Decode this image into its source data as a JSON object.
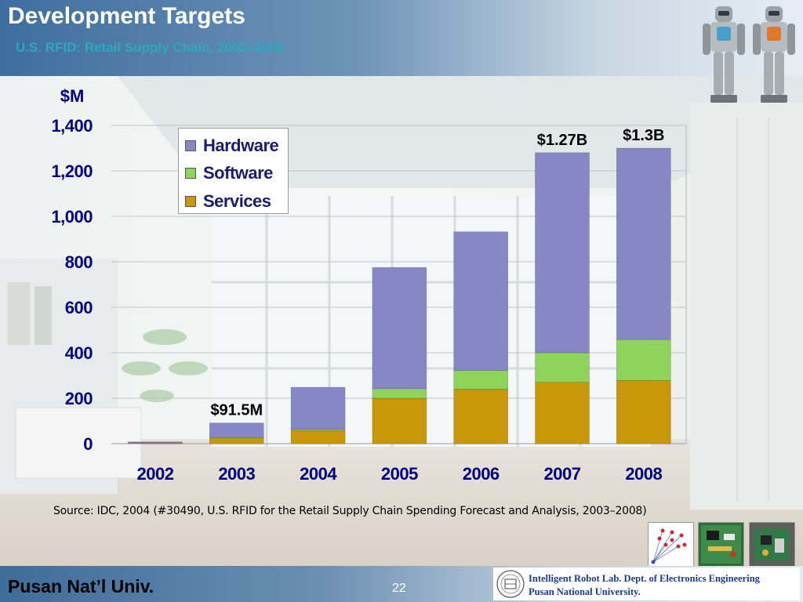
{
  "header": {
    "title": "Development Targets",
    "subtitle": "U.S. RFID: Retail Supply Chain, 2002–2008"
  },
  "chart_data": {
    "type": "bar",
    "stacked": true,
    "ylabel": "$M",
    "ylim": [
      0,
      1400
    ],
    "yticks": [
      0,
      200,
      400,
      600,
      800,
      1000,
      1200,
      1400
    ],
    "ytick_labels": [
      "0",
      "200",
      "400",
      "600",
      "800",
      "1,000",
      "1,200",
      "1,400"
    ],
    "grid": true,
    "legend_position": "top-left",
    "categories": [
      "2002",
      "2003",
      "2004",
      "2005",
      "2006",
      "2007",
      "2008"
    ],
    "series": [
      {
        "name": "Services",
        "color": "#c9970a",
        "values": [
          3,
          25,
          58,
          200,
          240,
          270,
          278
        ]
      },
      {
        "name": "Software",
        "color": "#8ed35c",
        "values": [
          1,
          3,
          5,
          42,
          82,
          130,
          180
        ]
      },
      {
        "name": "Hardware",
        "color": "#8787c6",
        "values": [
          4,
          63,
          185,
          533,
          610,
          880,
          842
        ]
      }
    ],
    "annotations": [
      {
        "category": "2003",
        "text": "$91.5M"
      },
      {
        "category": "2007",
        "text": "$1.27B"
      },
      {
        "category": "2008",
        "text": "$1.3B"
      }
    ]
  },
  "legend": {
    "items": [
      {
        "label": "Hardware",
        "color": "#8787c6"
      },
      {
        "label": "Software",
        "color": "#8ed35c"
      },
      {
        "label": "Services",
        "color": "#c9970a"
      }
    ]
  },
  "source": "Source: IDC, 2004 (#30490, U.S. RFID for the Retail Supply Chain Spending Forecast and Analysis, 2003–2008)",
  "footer": {
    "university": "Pusan Nat’l Univ.",
    "page": "22",
    "lab_line1": "Intelligent Robot Lab. Dept. of Electronics Engineering",
    "lab_line2": "Pusan National  University."
  },
  "colors": {
    "axis_text": "#000080",
    "header_accent": "#2ea8c0",
    "lab_text": "#1e3a8c"
  }
}
